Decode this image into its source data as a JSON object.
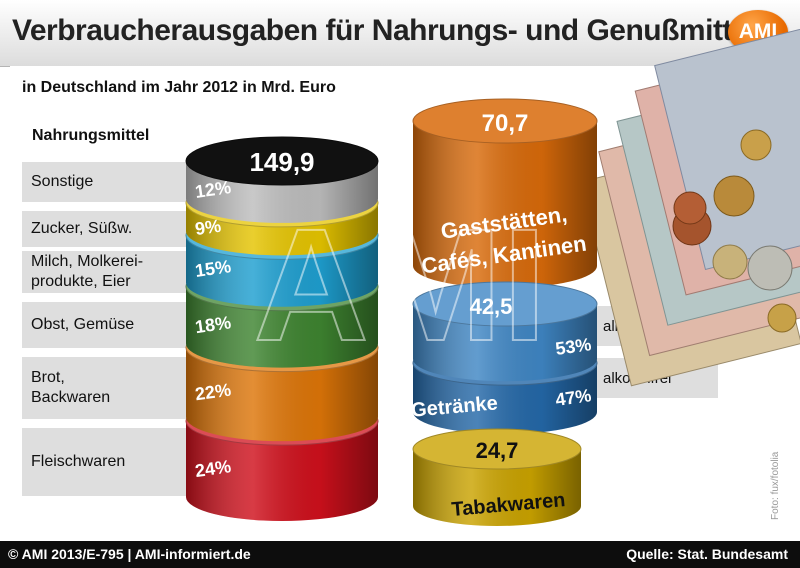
{
  "header": {
    "title": "Verbraucherausgaben für Nahrungs- und Genußmittel",
    "logo": "AMI"
  },
  "subtitle": "in Deutschland im Jahr 2012 in Mrd. Euro",
  "food_heading": "Nahrungsmittel",
  "footer": {
    "left": "© AMI 2013/E-795 | AMI-informiert.de",
    "right": "Quelle: Stat. Bundesamt"
  },
  "photo_credit": "Foto: fux/fotolia",
  "watermark": "AMI",
  "colors": {
    "sonstige": "#bdbdbd",
    "zucker": "#e5c400",
    "milch": "#1e9fd0",
    "obst": "#3e8430",
    "brot": "#dd7508",
    "fleisch": "#cf101c",
    "gaststaetten": "#d86a0a",
    "alkoholische": "#3f86c4",
    "alkoholfrei": "#2468a8",
    "tabak": "#caa300",
    "top": "#111111"
  },
  "chart_data": {
    "type": "stacked-cylinder",
    "unit": "Mrd. Euro",
    "nahrungsmittel": {
      "label": "Nahrungsmittel",
      "total": 149.9,
      "total_label": "149,9",
      "segments": [
        {
          "key": "sonstige",
          "name": "Sonstige",
          "percent": 12,
          "percent_label": "12%"
        },
        {
          "key": "zucker",
          "name": "Zucker, Süßw.",
          "percent": 9,
          "percent_label": "9%"
        },
        {
          "key": "milch",
          "name": "Milch, Molkerei-produkte, Eier",
          "name_lines": [
            "Milch, Molkerei-",
            "produkte, Eier"
          ],
          "percent": 15,
          "percent_label": "15%"
        },
        {
          "key": "obst",
          "name": "Obst, Gemüse",
          "percent": 18,
          "percent_label": "18%"
        },
        {
          "key": "brot",
          "name": "Brot, Backwaren",
          "name_lines": [
            "Brot,",
            "Backwaren"
          ],
          "percent": 22,
          "percent_label": "22%"
        },
        {
          "key": "fleisch",
          "name": "Fleischwaren",
          "percent": 24,
          "percent_label": "24%"
        }
      ]
    },
    "gaststaetten": {
      "label_lines": [
        "Gaststätten,",
        "Cafés, Kantinen"
      ],
      "value": 70.7,
      "value_label": "70,7"
    },
    "getraenke": {
      "label": "Getränke",
      "value": 42.5,
      "value_label": "42,5",
      "segments": [
        {
          "key": "alkoholische",
          "name": "alkoholische",
          "percent": 53,
          "percent_label": "53%"
        },
        {
          "key": "alkoholfrei",
          "name": "alkoholfrei",
          "percent": 47,
          "percent_label": "47%"
        }
      ]
    },
    "tabakwaren": {
      "label": "Tabakwaren",
      "value": 24.7,
      "value_label": "24,7"
    }
  }
}
